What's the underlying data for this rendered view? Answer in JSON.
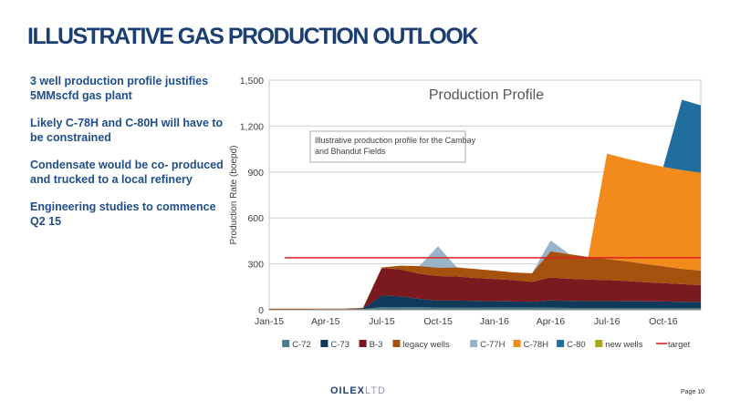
{
  "slide": {
    "title": "ILLUSTRATIVE GAS PRODUCTION OUTLOOK",
    "bullets": [
      "3 well production profile justifies 5MMscfd gas plant",
      "Likely C-78H and C-80H will have to be constrained",
      "Condensate would be co- produced and trucked to a local refinery",
      "Engineering studies to commence Q2 15"
    ],
    "logo_main": "OILEX",
    "logo_suffix": "LTD",
    "page_label": "Page 10"
  },
  "chart_data": {
    "type": "area",
    "stacked": true,
    "title": "Production Profile",
    "annotation": "Illustrative production profile for the Cambay and Bhandut Fields",
    "xlabel": "",
    "ylabel": "Production Rate (boepd)",
    "x": [
      "2015-01",
      "2015-02",
      "2015-03",
      "2015-04",
      "2015-05",
      "2015-06",
      "2015-07",
      "2015-08",
      "2015-09",
      "2015-10",
      "2015-11",
      "2015-12",
      "2016-01",
      "2016-02",
      "2016-03",
      "2016-04",
      "2016-05",
      "2016-06",
      "2016-07",
      "2016-08",
      "2016-09",
      "2016-10",
      "2016-11",
      "2016-12"
    ],
    "x_tick_labels": [
      "Jan-15",
      "Apr-15",
      "Jul-15",
      "Oct-15",
      "Jan-16",
      "Apr-16",
      "Jul-16",
      "Oct-16"
    ],
    "x_tick_positions": [
      "2015-01",
      "2015-04",
      "2015-07",
      "2015-10",
      "2016-01",
      "2016-04",
      "2016-07",
      "2016-10"
    ],
    "ylim": [
      0,
      1500
    ],
    "yticks": [
      0,
      300,
      600,
      900,
      1200,
      1500
    ],
    "ytick_labels": [
      "0",
      "300",
      "600",
      "900",
      "1,200",
      "1,500"
    ],
    "grid": "horizontal",
    "legend_position": "bottom",
    "series": [
      {
        "name": "C-72",
        "color": "#4a7d8c",
        "values": [
          3,
          3,
          3,
          4,
          4,
          4,
          18,
          18,
          16,
          15,
          15,
          15,
          14,
          14,
          13,
          13,
          12,
          12,
          12,
          11,
          11,
          11,
          10,
          10
        ]
      },
      {
        "name": "C-73",
        "color": "#0f3a5a",
        "values": [
          0,
          0,
          0,
          0,
          0,
          5,
          75,
          70,
          55,
          45,
          45,
          43,
          42,
          40,
          40,
          48,
          46,
          45,
          45,
          44,
          44,
          43,
          42,
          41
        ]
      },
      {
        "name": "B-3",
        "color": "#7a1a1e",
        "values": [
          0,
          0,
          0,
          0,
          0,
          0,
          180,
          175,
          165,
          160,
          157,
          150,
          145,
          140,
          130,
          150,
          145,
          140,
          137,
          133,
          125,
          120,
          115,
          110
        ]
      },
      {
        "name": "legacy wells",
        "color": "#a5520f",
        "values": [
          4,
          4,
          4,
          4,
          4,
          4,
          4,
          25,
          50,
          55,
          60,
          58,
          55,
          50,
          55,
          172,
          160,
          148,
          138,
          130,
          120,
          110,
          100,
          95
        ]
      },
      {
        "name": "C-77H",
        "color": "#9ab3c9",
        "values": [
          0,
          0,
          0,
          0,
          0,
          0,
          0,
          0,
          0,
          140,
          0,
          0,
          0,
          0,
          0,
          70,
          0,
          0,
          0,
          0,
          0,
          0,
          0,
          0
        ]
      },
      {
        "name": "C-78H",
        "color": "#f28a1c",
        "values": [
          0,
          0,
          0,
          0,
          0,
          0,
          0,
          0,
          0,
          0,
          0,
          0,
          0,
          0,
          0,
          0,
          0,
          0,
          688,
          670,
          660,
          650,
          645,
          640
        ]
      },
      {
        "name": "C-80",
        "color": "#1f6e9e",
        "values": [
          0,
          0,
          0,
          0,
          0,
          0,
          0,
          0,
          0,
          0,
          0,
          0,
          0,
          0,
          0,
          0,
          0,
          0,
          0,
          0,
          0,
          0,
          460,
          440
        ]
      },
      {
        "name": "new wells",
        "color": "#a8a81a",
        "values": [
          0,
          0,
          0,
          0,
          0,
          0,
          0,
          0,
          0,
          0,
          0,
          0,
          0,
          0,
          0,
          0,
          0,
          0,
          0,
          0,
          0,
          0,
          0,
          0
        ]
      }
    ],
    "reference_lines": [
      {
        "name": "target",
        "color": "#e02020",
        "value": 340
      }
    ]
  }
}
